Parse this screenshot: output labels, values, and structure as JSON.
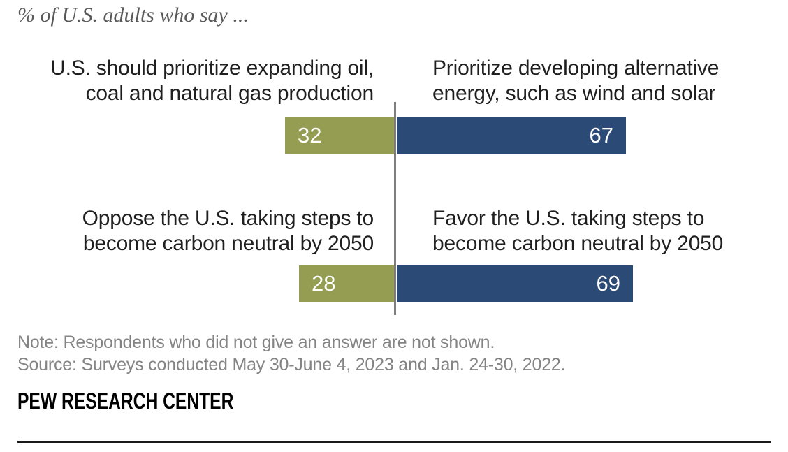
{
  "title": "% of U.S. adults who say ...",
  "chart_data": {
    "type": "bar",
    "subtype": "diverging-horizontal-pair",
    "title": "% of U.S. adults who say ...",
    "unit": "percent",
    "legend_position": "none",
    "grid": false,
    "rows": [
      {
        "left_label": "U.S. should prioritize expanding oil, coal and natural gas production",
        "left_label_lines": [
          "U.S. should prioritize expanding oil,",
          "coal and natural gas production"
        ],
        "left_value": 32,
        "right_label": "Prioritize developing alternative energy, such as wind and solar",
        "right_label_lines": [
          "Prioritize developing alternative",
          "energy, such as wind and solar"
        ],
        "right_value": 67
      },
      {
        "left_label": "Oppose the U.S. taking steps to become carbon neutral by 2050",
        "left_label_lines": [
          "Oppose the U.S. taking steps to",
          "become carbon neutral by 2050"
        ],
        "left_value": 28,
        "right_label": "Favor the U.S. taking steps to become carbon neutral by 2050",
        "right_label_lines": [
          "Favor the U.S. taking steps to",
          "become carbon neutral by 2050"
        ],
        "right_value": 69
      }
    ],
    "colors": {
      "left_bar": "#949D52",
      "right_bar": "#2C4A76",
      "divider": "#7D7D7D",
      "value_text": "#FFFFFF"
    }
  },
  "note": "Note: Respondents who did not give an answer are not shown.",
  "source": "Source: Surveys conducted May 30-June 4, 2023 and Jan. 24-30, 2022.",
  "footer": "PEW RESEARCH CENTER"
}
